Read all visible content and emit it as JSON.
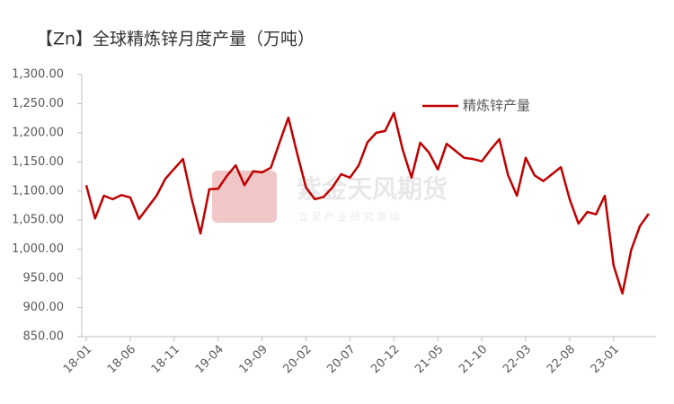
{
  "chart_data": {
    "type": "line",
    "title": "【Zn】全球精炼锌月度产量（万吨）",
    "watermark": "紫金天风期货",
    "watermark_subtitle": "立 足 产 业   研 究 驱 动",
    "categories": [
      "18-01",
      null,
      null,
      null,
      null,
      "18-06",
      null,
      null,
      null,
      null,
      "18-11",
      null,
      null,
      null,
      null,
      "19-04",
      null,
      null,
      null,
      null,
      "19-09",
      null,
      null,
      null,
      null,
      "20-02",
      null,
      null,
      null,
      null,
      "20-07",
      null,
      null,
      null,
      null,
      "20-12",
      null,
      null,
      null,
      null,
      "21-05",
      null,
      null,
      null,
      null,
      "21-10",
      null,
      null,
      null,
      null,
      "22-03",
      null,
      null,
      null,
      null,
      "22-08",
      null,
      null,
      null,
      null,
      "23-01",
      null,
      null,
      null,
      null
    ],
    "series": [
      {
        "name": "精炼锌产量",
        "color": "#c00000",
        "values": [
          1110,
          1053,
          1092,
          1086,
          1093,
          1089,
          1052,
          1072,
          1092,
          1121,
          1138,
          1155,
          1086,
          1027,
          1103,
          1104,
          1126,
          1144,
          1110,
          1134,
          1132,
          1140,
          1184,
          1226,
          1164,
          1106,
          1086,
          1090,
          1106,
          1129,
          1123,
          1144,
          1184,
          1200,
          1203,
          1234,
          1171,
          1123,
          1183,
          1166,
          1137,
          1181,
          1169,
          1157,
          1155,
          1151,
          1171,
          1189,
          1127,
          1092,
          1157,
          1127,
          1117,
          1129,
          1141,
          1086,
          1044,
          1064,
          1060,
          1092,
          972,
          924,
          999,
          1040,
          1061
        ]
      }
    ],
    "ylim": [
      850,
      1300
    ],
    "yticks": [
      {
        "value": 850,
        "label": "850.00"
      },
      {
        "value": 900,
        "label": "900.00"
      },
      {
        "value": 950,
        "label": "950.00"
      },
      {
        "value": 1000,
        "label": "1,000.00"
      },
      {
        "value": 1050,
        "label": "1,050.00"
      },
      {
        "value": 1100,
        "label": "1,100.00"
      },
      {
        "value": 1150,
        "label": "1,150.00"
      },
      {
        "value": 1200,
        "label": "1,200.00"
      },
      {
        "value": 1250,
        "label": "1,250.00"
      },
      {
        "value": 1300,
        "label": "1,300.00"
      }
    ],
    "grid": false,
    "legend": "upper right"
  }
}
